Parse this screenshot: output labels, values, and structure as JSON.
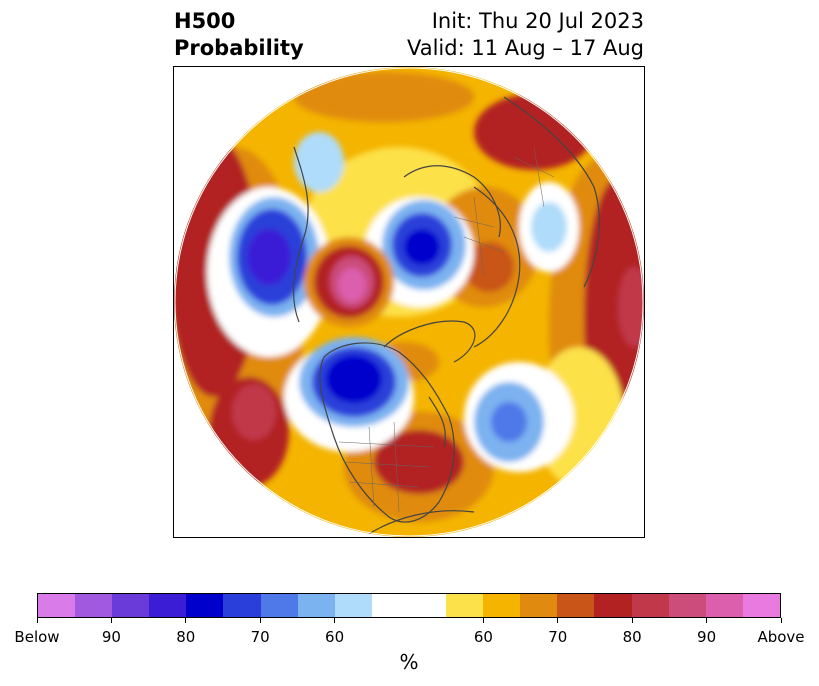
{
  "title": {
    "left": "H500\nProbability",
    "init": "Init: Thu 20 Jul 2023",
    "valid": "Valid: 11 Aug – 17 Aug"
  },
  "colorbar": {
    "colors": [
      "#d97be8",
      "#a159e0",
      "#6a3bd8",
      "#3b1dd6",
      "#0000cc",
      "#2a3fd9",
      "#4f78e8",
      "#7bb2f0",
      "#aedcfa",
      "#ffffff",
      "#ffffff",
      "#fde14a",
      "#f4b400",
      "#e08b10",
      "#c95518",
      "#b22222",
      "#c1384a",
      "#cc4c7a",
      "#dc5fae",
      "#e87ae0"
    ],
    "tick_labels": [
      "Below",
      "90",
      "80",
      "70",
      "60",
      "60",
      "70",
      "80",
      "90",
      "Above"
    ],
    "units": "%"
  },
  "map": {
    "projection": "north-polar-stereographic",
    "colors": {
      "land_lines": "#444444",
      "below_light": "#aedcfa",
      "below_mid": "#4f78e8",
      "below_strong": "#0000cc",
      "above_light": "#fde14a",
      "above_mid": "#f4b400",
      "above_orange": "#e08b10",
      "above_red": "#b22222",
      "above_pink": "#dc5fae"
    }
  }
}
